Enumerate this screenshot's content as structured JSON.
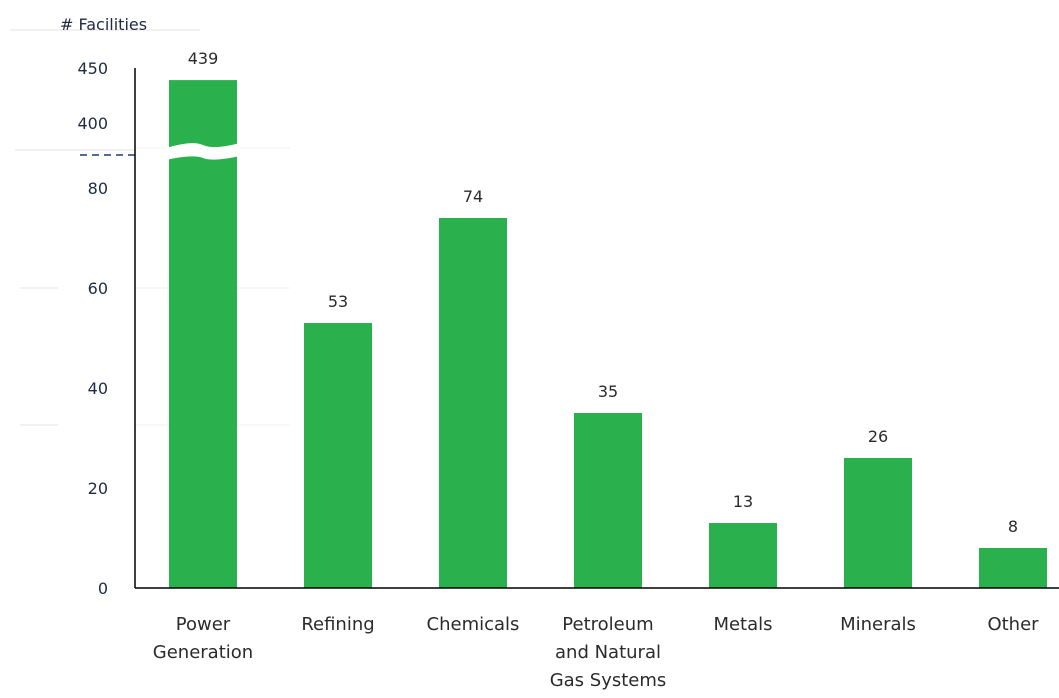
{
  "chart_data": {
    "type": "bar",
    "title": "",
    "ylabel": "# Facilities",
    "xlabel": "",
    "categories": [
      [
        "Power",
        "Generation"
      ],
      [
        "Refining"
      ],
      [
        "Chemicals"
      ],
      [
        "Petroleum",
        "and Natural",
        "Gas Systems"
      ],
      [
        "Metals"
      ],
      [
        "Minerals"
      ],
      [
        "Other"
      ]
    ],
    "values": [
      439,
      53,
      74,
      35,
      13,
      26,
      8
    ],
    "value_labels": [
      "439",
      "53",
      "74",
      "35",
      "13",
      "26",
      "8"
    ],
    "y_ticks_lower": [
      "0",
      "20",
      "40",
      "60",
      "80"
    ],
    "y_ticks_upper": [
      "400",
      "450"
    ],
    "lower_axis_range": [
      0,
      88
    ],
    "upper_axis_range": [
      400,
      450
    ],
    "axis_break": true,
    "grid": false,
    "legend": "none",
    "bar_color": "#2ab14e",
    "axis_color": "#000000",
    "break_line_color": "#1f3a6e"
  }
}
